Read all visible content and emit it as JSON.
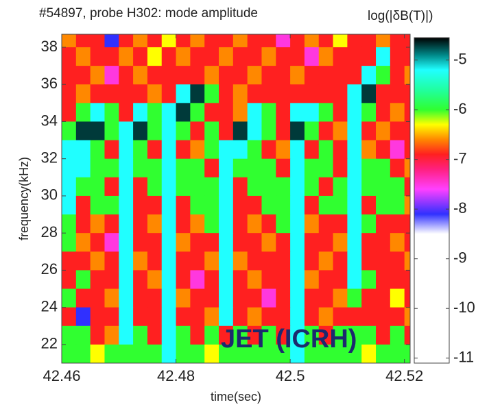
{
  "chart_data": {
    "type": "heatmap",
    "title": "#54897, probe H302: mode amplitude",
    "colorbar_label": "log(|δB(T)|)",
    "x_label": "time(sec)",
    "y_label": "frequency(kHz)",
    "annotation": "JET (ICRH)",
    "xlim": [
      42.46,
      42.521
    ],
    "ylim": [
      21,
      38.7
    ],
    "zlim": [
      -11.1,
      -4.55
    ],
    "xticks": [
      42.46,
      42.48,
      42.5,
      42.52
    ],
    "yticks": [
      22,
      24,
      26,
      28,
      30,
      32,
      34,
      36,
      38
    ],
    "zticks": [
      -11,
      -10,
      -9,
      -8,
      -7,
      -6,
      -5
    ],
    "colormap": [
      [
        -11.1,
        "#ffffff"
      ],
      [
        -8.5,
        "#ffffff"
      ],
      [
        -8.1,
        "#3030ff"
      ],
      [
        -7.6,
        "#ff40ff"
      ],
      [
        -7.2,
        "#ff2080"
      ],
      [
        -6.9,
        "#ff2020"
      ],
      [
        -6.6,
        "#ff8800"
      ],
      [
        -6.3,
        "#ffff00"
      ],
      [
        -6.0,
        "#30ff30"
      ],
      [
        -5.6,
        "#20ffa0"
      ],
      [
        -5.2,
        "#20ffff"
      ],
      [
        -4.9,
        "#008888"
      ],
      [
        -4.55,
        "#000000"
      ]
    ],
    "x": [
      42.46125,
      42.46375,
      42.46625,
      42.46875,
      42.47125,
      42.47375,
      42.47625,
      42.47875,
      42.48125,
      42.48375,
      42.48625,
      42.48875,
      42.49125,
      42.49375,
      42.49625,
      42.49875,
      42.50125,
      42.50375,
      42.50625,
      42.50875,
      42.51125,
      42.51375,
      42.51625,
      42.51875,
      42.52125
    ],
    "y": [
      38.5,
      37.5,
      36.5,
      35.5,
      34.5,
      33.5,
      32.5,
      31.5,
      30.5,
      29.5,
      28.5,
      27.5,
      26.5,
      25.5,
      24.5,
      23.5,
      22.5,
      21.5
    ],
    "z": [
      [
        -6.6,
        -6.9,
        -6.9,
        -8.1,
        -6.9,
        -6.6,
        -6.9,
        -6.3,
        -6.9,
        -6.6,
        -6.9,
        -6.9,
        -6.6,
        -6.9,
        -6.9,
        -7.5,
        -6.9,
        -6.6,
        -6.9,
        -6.3,
        -6.9,
        -6.9,
        -6.6,
        -6.9,
        -6.9
      ],
      [
        -6.9,
        -6.6,
        -6.9,
        -6.9,
        -6.6,
        -6.9,
        -6.3,
        -6.9,
        -6.6,
        -6.9,
        -6.9,
        -6.6,
        -6.9,
        -6.9,
        -6.6,
        -6.9,
        -6.9,
        -7.5,
        -6.6,
        -6.9,
        -6.9,
        -6.9,
        -5.2,
        -6.9,
        -6.9
      ],
      [
        -6.9,
        -6.9,
        -6.6,
        -7.5,
        -6.9,
        -6.6,
        -6.9,
        -6.9,
        -6.9,
        -6.9,
        -6.6,
        -6.9,
        -6.9,
        -6.6,
        -6.9,
        -6.9,
        -6.6,
        -6.9,
        -6.9,
        -6.9,
        -6.9,
        -5.2,
        -6,
        -6.9,
        -6.6
      ],
      [
        -6.9,
        -6.6,
        -6.9,
        -6.9,
        -6.9,
        -6.9,
        -6.6,
        -6.9,
        -5.2,
        -4.7,
        -6,
        -6.9,
        -6.6,
        -6.9,
        -6.9,
        -6.9,
        -6.9,
        -6.9,
        -6.9,
        -6.9,
        -5.2,
        -4.7,
        -6.9,
        -6.9,
        -6.9
      ],
      [
        -6.9,
        -6,
        -5.2,
        -6,
        -6.9,
        -5.2,
        -6,
        -5.2,
        -4.7,
        -6,
        -6.9,
        -6.9,
        -6.6,
        -5.2,
        -6,
        -6.9,
        -5.2,
        -5.2,
        -6,
        -6.9,
        -5.2,
        -6,
        -6.9,
        -6.6,
        -6.9
      ],
      [
        -6,
        -4.7,
        -4.7,
        -6,
        -5.2,
        -4.7,
        -6,
        -5.2,
        -6,
        -6.9,
        -6,
        -6.9,
        -4.7,
        -5.2,
        -6,
        -6.9,
        -4.7,
        -6,
        -6.9,
        -6.6,
        -5.2,
        -6.9,
        -6.6,
        -6.9,
        -6.9
      ],
      [
        -5.2,
        -5.2,
        -6,
        -6.9,
        -5.2,
        -6,
        -6.9,
        -5.2,
        -6.9,
        -6.6,
        -6,
        -5.2,
        -5.2,
        -6,
        -6.9,
        -6.6,
        -5.2,
        -6.9,
        -6,
        -6.9,
        -5.2,
        -6.6,
        -6.9,
        -7.5,
        -6.9
      ],
      [
        -5.2,
        -5.2,
        -6,
        -6,
        -5.2,
        -6,
        -6,
        -5.2,
        -6,
        -6,
        -6.9,
        -5.2,
        -6,
        -6,
        -6,
        -6.9,
        -5.2,
        -6,
        -6,
        -6.9,
        -5.2,
        -6,
        -6,
        -6.9,
        -6.6
      ],
      [
        -5.2,
        -6,
        -6,
        -6.9,
        -5.2,
        -6.9,
        -6,
        -5.2,
        -6,
        -6,
        -6,
        -5.2,
        -6.9,
        -6,
        -6,
        -6,
        -5.2,
        -6,
        -6.9,
        -6,
        -5.2,
        -6,
        -6,
        -6,
        -6.9
      ],
      [
        -5.2,
        -6.9,
        -6,
        -6,
        -5.2,
        -6.9,
        -6.9,
        -5.2,
        -6.9,
        -6,
        -6,
        -5.2,
        -6.9,
        -6.9,
        -6,
        -6,
        -5.2,
        -6.9,
        -6,
        -6,
        -5.2,
        -6.9,
        -6,
        -6,
        -6.6
      ],
      [
        -6,
        -6.9,
        -6.6,
        -6.9,
        -5.2,
        -6.9,
        -6.6,
        -5.2,
        -6.9,
        -6.6,
        -6,
        -5.2,
        -6.9,
        -6.6,
        -6.9,
        -6,
        -5.2,
        -6.6,
        -6.9,
        -6.9,
        -5.2,
        -6,
        -6.9,
        -6.9,
        -6.9
      ],
      [
        -6,
        -6.6,
        -6.9,
        -7.5,
        -5.2,
        -6.9,
        -6.9,
        -5.2,
        -6.6,
        -6.9,
        -6.9,
        -5.2,
        -6.9,
        -6.9,
        -6.6,
        -6.9,
        -5.2,
        -6.9,
        -6.9,
        -6.6,
        -5.2,
        -6.9,
        -6.9,
        -6.6,
        -6.9
      ],
      [
        -6.9,
        -6.9,
        -6.6,
        -6.9,
        -5.2,
        -6.6,
        -6.9,
        -5.2,
        -6.9,
        -6.9,
        -6.6,
        -5.2,
        -6.6,
        -6.9,
        -6.9,
        -6.9,
        -5.2,
        -6.9,
        -6.6,
        -6.9,
        -5.2,
        -6.9,
        -6.9,
        -6.9,
        -6.6
      ],
      [
        -6.9,
        -6,
        -6.9,
        -6.9,
        -5.2,
        -6.9,
        -6.6,
        -5.2,
        -6.9,
        -7.5,
        -6.9,
        -5.2,
        -6.9,
        -6.6,
        -6.9,
        -6.9,
        -5.2,
        -6.6,
        -6.9,
        -6.9,
        -5.2,
        -6,
        -6.9,
        -6.9,
        -6.9
      ],
      [
        -6,
        -6.9,
        -6.9,
        -6.6,
        -5.2,
        -6.9,
        -6.9,
        -5.2,
        -6.6,
        -6.9,
        -6.9,
        -5.2,
        -6.9,
        -6.9,
        -7.5,
        -6.9,
        -5.2,
        -6.9,
        -6.9,
        -6.6,
        -6,
        -6.9,
        -6.9,
        -6.3,
        -6.9
      ],
      [
        -6.9,
        -8.1,
        -6.9,
        -6.9,
        -5.2,
        -6.9,
        -6.9,
        -5.2,
        -6.9,
        -6.9,
        -6.6,
        -5.2,
        -6.9,
        -6.6,
        -6.9,
        -6.9,
        -5.2,
        -6.9,
        -6.6,
        -6.9,
        -6.9,
        -6.9,
        -6.9,
        -6.9,
        -6.6
      ],
      [
        -6,
        -6,
        -6.9,
        -6.6,
        -5.2,
        -6,
        -6.9,
        -5.2,
        -6,
        -6.9,
        -6,
        -6.9,
        -6,
        -6.9,
        -6,
        -6.9,
        -5.2,
        -6,
        -6.9,
        -6,
        -6,
        -6,
        -6.9,
        -6,
        -6.9
      ],
      [
        -6,
        -6,
        -6.3,
        -6,
        -6,
        -6,
        -6,
        -5.2,
        -6,
        -6,
        -6.3,
        -6,
        -6,
        -6,
        -6,
        -6,
        -5.2,
        -6,
        -6,
        -6,
        -6,
        -6.3,
        -6,
        -6,
        -6
      ]
    ]
  }
}
